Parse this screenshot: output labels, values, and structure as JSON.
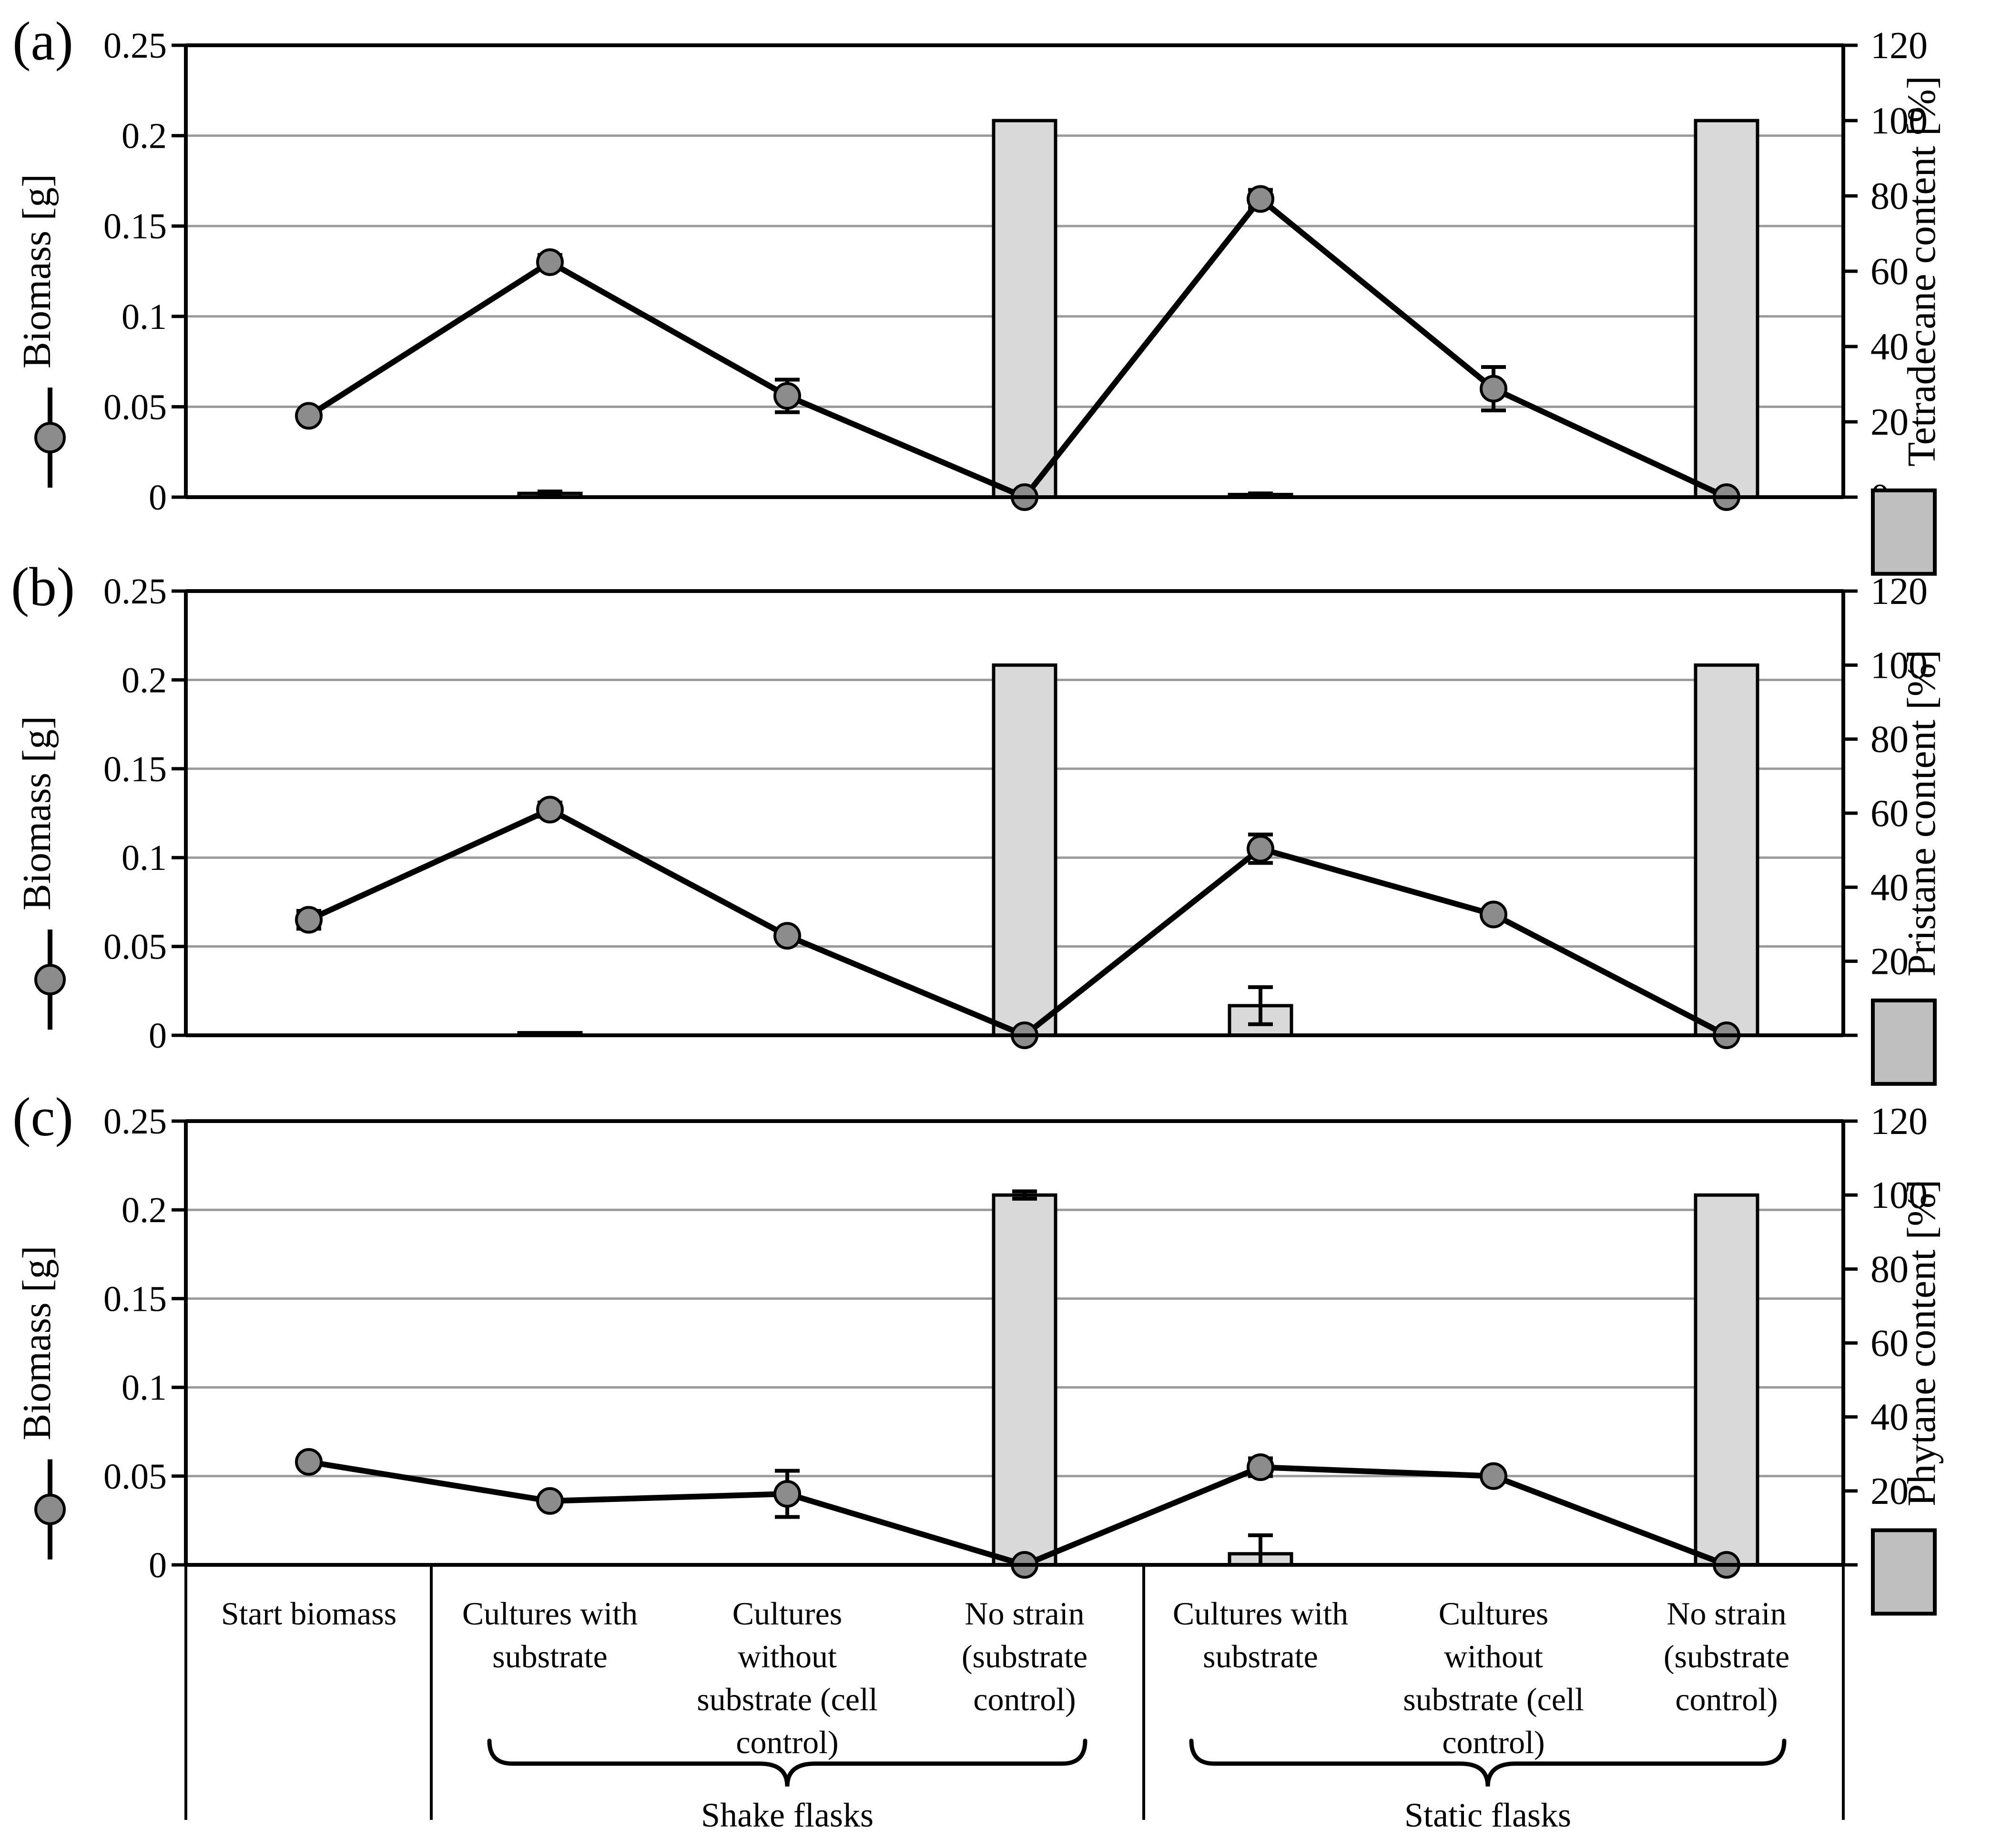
{
  "colors": {
    "line": "#000000",
    "marker_fill": "#8c8c8c",
    "bar_fill": "#d9d9d9",
    "legend_swatch_fill": "#bfbfbf",
    "gridline": "#9a9a9a",
    "axis": "#000000",
    "background": "#ffffff"
  },
  "x_axis": {
    "category_label_lines": [
      [
        "Start biomass"
      ],
      [
        "Cultures with",
        "substrate"
      ],
      [
        "Cultures",
        "without",
        "substrate (cell",
        "control)"
      ],
      [
        "No strain",
        "(substrate",
        "control)"
      ],
      [
        "Cultures with",
        "substrate"
      ],
      [
        "Cultures",
        "without",
        "substrate (cell",
        "control)"
      ],
      [
        "No strain",
        "(substrate",
        "control)"
      ]
    ],
    "group_labels": [
      "Shake flasks",
      "Static flasks"
    ]
  },
  "chart_data": [
    {
      "type": "line+bar",
      "panel_label": "(a)",
      "categories": [
        "Start biomass",
        "Cultures with substrate",
        "Cultures without substrate (cell control)",
        "No strain (substrate control)",
        "Cultures with substrate",
        "Cultures without substrate (cell control)",
        "No strain (substrate control)"
      ],
      "groups": [
        {
          "label": "Shake flasks",
          "category_indexes": [
            1,
            2,
            3
          ]
        },
        {
          "label": "Static flasks",
          "category_indexes": [
            4,
            5,
            6
          ]
        }
      ],
      "left_axis": {
        "label": "Biomass [g]",
        "min": 0,
        "max": 0.25,
        "tick_labels": [
          "0",
          "0.05",
          "0.1",
          "0.15",
          "0.2",
          "0.25"
        ]
      },
      "right_axis": {
        "label": "Tetradecane content [%]",
        "min": 0,
        "max": 120,
        "tick_labels": [
          "0",
          "20",
          "40",
          "60",
          "80",
          "100",
          "120"
        ]
      },
      "gridline_values": [
        0.05,
        0.1,
        0.15,
        0.2
      ],
      "series": [
        {
          "name": "Biomass",
          "type": "line",
          "axis": "left",
          "values": [
            0.045,
            0.13,
            0.056,
            0,
            0.165,
            0.06,
            0
          ],
          "errors": [
            0,
            0.004,
            0.009,
            0,
            0.005,
            0.012,
            0
          ]
        },
        {
          "name": "Tetradecane content",
          "type": "bar",
          "axis": "right",
          "values": [
            null,
            1,
            null,
            100,
            0.7,
            null,
            100
          ],
          "errors": [
            null,
            0.5,
            null,
            null,
            0.3,
            null,
            null
          ]
        }
      ]
    },
    {
      "type": "line+bar",
      "panel_label": "(b)",
      "categories": [
        "Start biomass",
        "Cultures with substrate",
        "Cultures without substrate (cell control)",
        "No strain (substrate control)",
        "Cultures with substrate",
        "Cultures without substrate (cell control)",
        "No strain (substrate control)"
      ],
      "groups": [
        {
          "label": "Shake flasks",
          "category_indexes": [
            1,
            2,
            3
          ]
        },
        {
          "label": "Static flasks",
          "category_indexes": [
            4,
            5,
            6
          ]
        }
      ],
      "left_axis": {
        "label": "Biomass [g]",
        "min": 0,
        "max": 0.25,
        "tick_labels": [
          "0",
          "0.05",
          "0.1",
          "0.15",
          "0.2",
          "0.25"
        ]
      },
      "right_axis": {
        "label": "Pristane content [%]",
        "min": 0,
        "max": 120,
        "tick_labels": [
          "0",
          "20",
          "40",
          "60",
          "80",
          "100",
          "120"
        ]
      },
      "gridline_values": [
        0.05,
        0.1,
        0.15,
        0.2
      ],
      "series": [
        {
          "name": "Biomass",
          "type": "line",
          "axis": "left",
          "values": [
            0.065,
            0.127,
            0.056,
            0,
            0.105,
            0.068,
            0
          ],
          "errors": [
            0.005,
            0.004,
            0,
            0,
            0.008,
            0,
            0
          ]
        },
        {
          "name": "Pristane content",
          "type": "bar",
          "axis": "right",
          "values": [
            null,
            0.7,
            null,
            100,
            8,
            null,
            100
          ],
          "errors": [
            null,
            null,
            null,
            null,
            5,
            null,
            null
          ]
        }
      ]
    },
    {
      "type": "line+bar",
      "panel_label": "(c)",
      "categories": [
        "Start biomass",
        "Cultures with substrate",
        "Cultures without substrate (cell control)",
        "No strain (substrate control)",
        "Cultures with substrate",
        "Cultures without substrate (cell control)",
        "No strain (substrate control)"
      ],
      "groups": [
        {
          "label": "Shake flasks",
          "category_indexes": [
            1,
            2,
            3
          ]
        },
        {
          "label": "Static flasks",
          "category_indexes": [
            4,
            5,
            6
          ]
        }
      ],
      "left_axis": {
        "label": "Biomass [g]",
        "min": 0,
        "max": 0.25,
        "tick_labels": [
          "0",
          "0.05",
          "0.1",
          "0.15",
          "0.2",
          "0.25"
        ]
      },
      "right_axis": {
        "label": "Phytane content [%]",
        "min": 0,
        "max": 120,
        "tick_labels": [
          "0",
          "20",
          "40",
          "60",
          "80",
          "100",
          "120"
        ]
      },
      "gridline_values": [
        0.05,
        0.1,
        0.15,
        0.2
      ],
      "series": [
        {
          "name": "Biomass",
          "type": "line",
          "axis": "left",
          "values": [
            0.058,
            0.036,
            0.04,
            0,
            0.055,
            0.05,
            0
          ],
          "errors": [
            0,
            0,
            0.013,
            0,
            0.005,
            0,
            0
          ]
        },
        {
          "name": "Phytane content",
          "type": "bar",
          "axis": "right",
          "values": [
            null,
            null,
            null,
            100,
            3,
            null,
            100
          ],
          "errors": [
            null,
            null,
            null,
            1,
            5,
            null,
            null
          ]
        }
      ]
    }
  ]
}
